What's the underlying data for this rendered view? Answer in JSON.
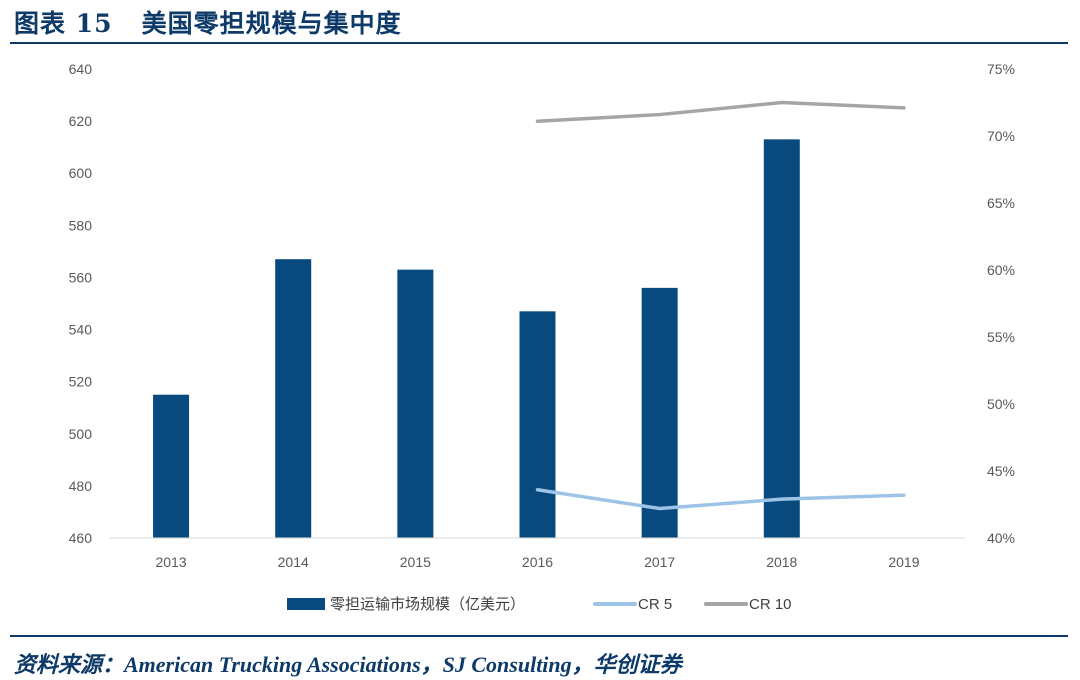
{
  "figure": {
    "label": "图表 15",
    "title": "美国零担规模与集中度",
    "source": "资料来源：American Trucking Associations，SJ Consulting，华创证券"
  },
  "colors": {
    "bar": "#084a7d",
    "cr5": "#9dc3e6",
    "cr10": "#a5a5a5",
    "heading": "#0d3a68"
  },
  "chart_data": {
    "type": "bar",
    "categories": [
      "2013",
      "2014",
      "2015",
      "2016",
      "2017",
      "2018",
      "2019"
    ],
    "y_left": {
      "ticks": [
        "640",
        "620",
        "600",
        "580",
        "560",
        "540",
        "520",
        "500",
        "480",
        "460"
      ],
      "ylim": [
        460,
        640
      ]
    },
    "y_right": {
      "ticks": [
        "75%",
        "70%",
        "65%",
        "60%",
        "55%",
        "50%",
        "45%",
        "40%"
      ],
      "ylim": [
        40,
        75
      ]
    },
    "series": [
      {
        "name": "零担运输市场规模（亿美元）",
        "type": "bar",
        "axis": "left",
        "values": [
          515,
          567,
          563,
          547,
          556,
          613,
          null
        ]
      },
      {
        "name": "CR 5",
        "type": "line",
        "axis": "right",
        "values": [
          null,
          null,
          null,
          43.6,
          42.2,
          42.9,
          43.2
        ]
      },
      {
        "name": "CR 10",
        "type": "line",
        "axis": "right",
        "values": [
          null,
          null,
          null,
          71.1,
          71.6,
          72.5,
          72.1
        ]
      }
    ],
    "legend_position": "bottom",
    "grid": false
  }
}
